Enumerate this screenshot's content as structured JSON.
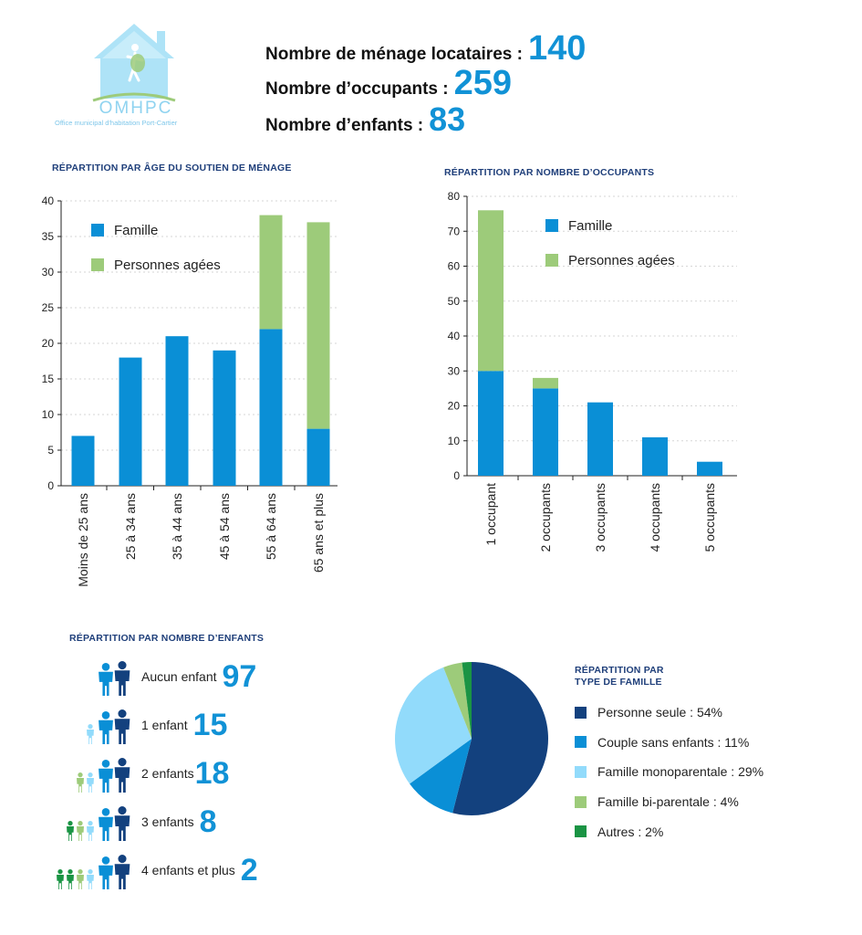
{
  "logo": {
    "title": "OMHPC",
    "subtitle": "Office municipal d'habitation Port-Cartier"
  },
  "stats": [
    {
      "label": "Nombre de ménage locataires :",
      "value": "140"
    },
    {
      "label": "Nombre d’occupants :",
      "value": "259"
    },
    {
      "label": "Nombre d’enfants :",
      "value": "83"
    }
  ],
  "colors": {
    "famille": "#0a8fd6",
    "agees": "#9dcb7a",
    "accent": "#1192d6",
    "title": "#1f3f7a"
  },
  "chart_data": [
    {
      "type": "bar",
      "stacked": true,
      "title": "RÉPARTITION PAR ÂGE DU SOUTIEN DE MÉNAGE",
      "categories": [
        "Moins de 25 ans",
        "25 à 34 ans",
        "35 à 44 ans",
        "45 à 54 ans",
        "55 à 64 ans",
        "65 ans et plus"
      ],
      "series": [
        {
          "name": "Famille",
          "values": [
            7,
            18,
            21,
            19,
            22,
            8
          ]
        },
        {
          "name": "Personnes agées",
          "values": [
            0,
            0,
            0,
            0,
            16,
            29
          ]
        }
      ],
      "ylim": [
        0,
        40
      ],
      "yticks": [
        0,
        5,
        10,
        15,
        20,
        25,
        30,
        35,
        40
      ],
      "grid": true,
      "legend": "top-left"
    },
    {
      "type": "bar",
      "stacked": true,
      "title": "RÉPARTITION PAR NOMBRE D’OCCUPANTS",
      "categories": [
        "1 occupant",
        "2 occupants",
        "3 occupants",
        "4 occupants",
        "5 occupants"
      ],
      "series": [
        {
          "name": "Famille",
          "values": [
            30,
            25,
            21,
            11,
            4
          ]
        },
        {
          "name": "Personnes agées",
          "values": [
            46,
            3,
            0,
            0,
            0
          ]
        }
      ],
      "ylim": [
        0,
        80
      ],
      "yticks": [
        0,
        10,
        20,
        30,
        40,
        50,
        60,
        70,
        80
      ],
      "grid": true,
      "legend": "top-right"
    },
    {
      "type": "pie",
      "title": "RÉPARTITION PAR TYPE DE FAMILLE",
      "title_lines": [
        "RÉPARTITION PAR",
        "TYPE DE FAMILLE"
      ],
      "slices": [
        {
          "label": "Personne seule : 54%",
          "value": 54,
          "color": "#13417e"
        },
        {
          "label": "Couple sans enfants : 11%",
          "value": 11,
          "color": "#0a8fd6"
        },
        {
          "label": "Famille monoparentale : 29%",
          "value": 29,
          "color": "#92dbfb"
        },
        {
          "label": "Famille bi-parentale : 4%",
          "value": 4,
          "color": "#9dcb7a"
        },
        {
          "label": "Autres : 2%",
          "value": 2,
          "color": "#1a9444"
        }
      ]
    }
  ],
  "children": {
    "title": "RÉPARTITION PAR NOMBRE D’ENFANTS",
    "rows": [
      {
        "label": "Aucun enfant",
        "value": "97",
        "kids": 0
      },
      {
        "label": "1 enfant",
        "value": "15",
        "kids": 1
      },
      {
        "label": "2 enfants",
        "value": "18",
        "kids": 2
      },
      {
        "label": "3 enfants",
        "value": "8",
        "kids": 3
      },
      {
        "label": "4 enfants et plus",
        "value": "2",
        "kids": 4
      }
    ]
  }
}
